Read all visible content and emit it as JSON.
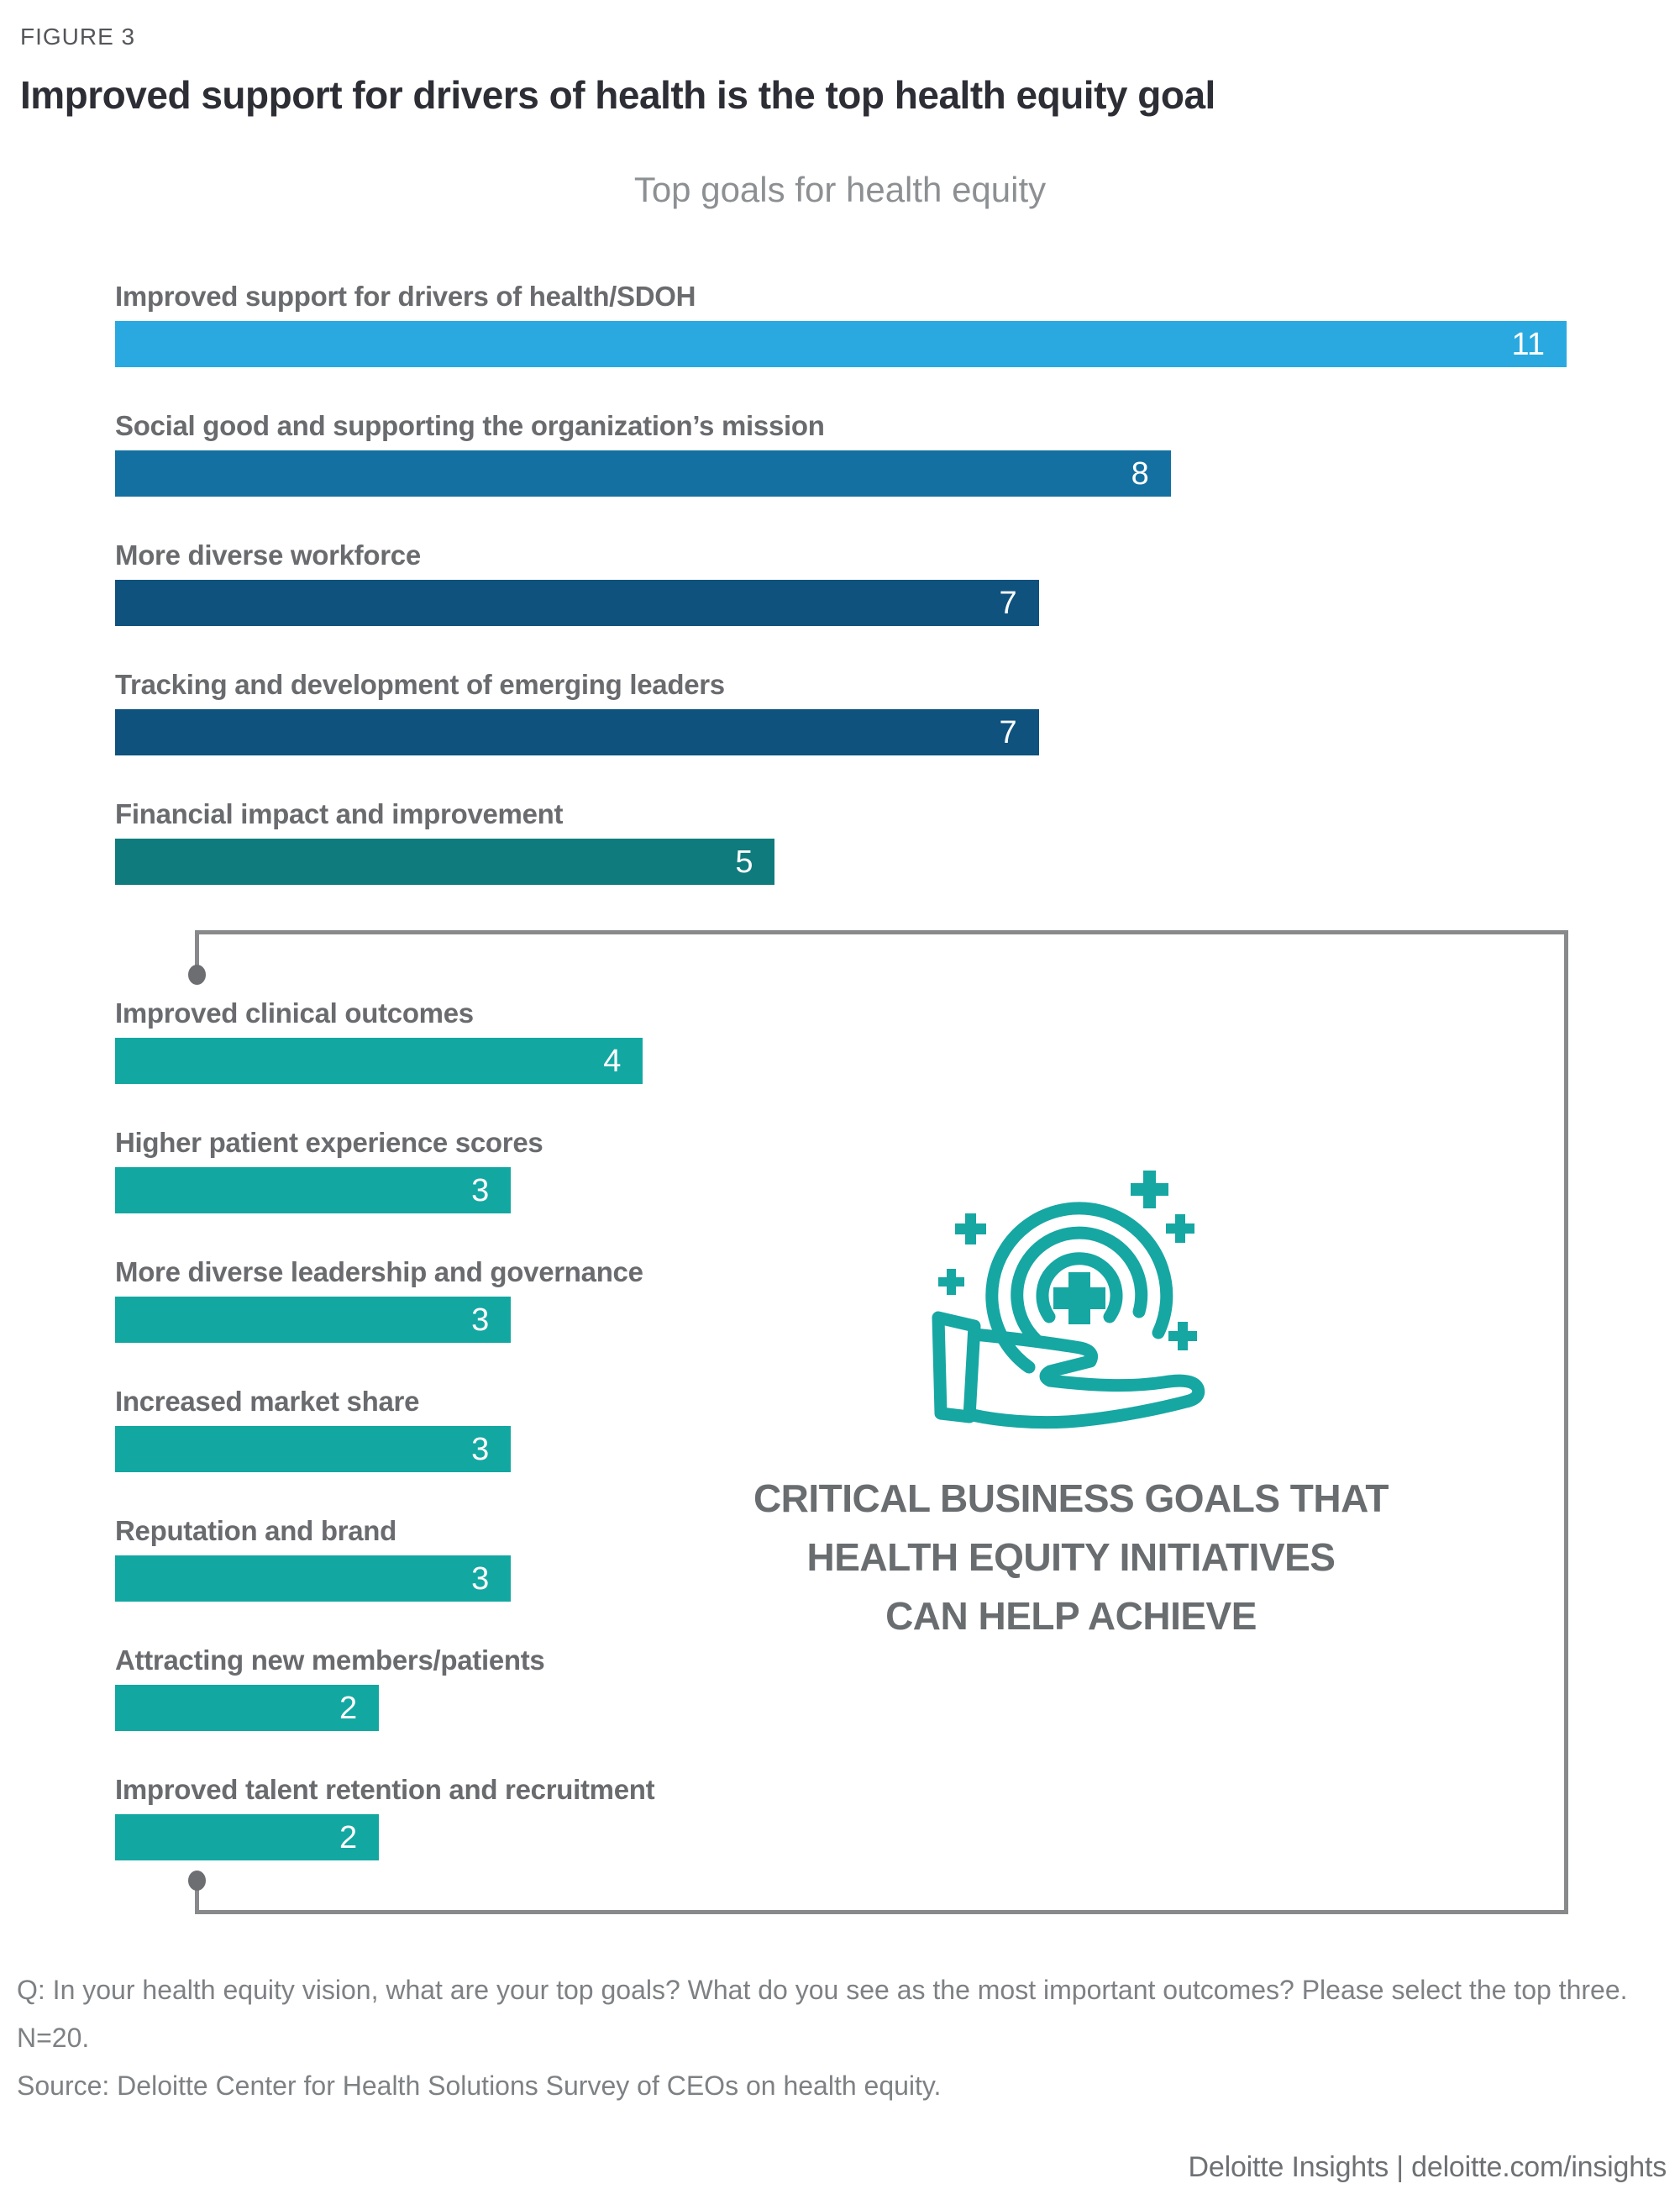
{
  "figure_label": "FIGURE 3",
  "title": "Improved support for drivers of health is the top health equity goal",
  "subtitle": "Top goals for health equity",
  "theme": {
    "accent": "#16A7A3",
    "bracket": "#88898B",
    "dot": "#6D6E71"
  },
  "chart_data": {
    "type": "bar",
    "orientation": "horizontal",
    "title": "Top goals for health equity",
    "xlabel": "",
    "ylabel": "",
    "xlim": [
      0,
      11
    ],
    "grid": false,
    "value_labels": "inside-right",
    "items": [
      {
        "label": "Improved support for drivers of health/SDOH",
        "value": 11,
        "color": "#29A9E0",
        "group": "top"
      },
      {
        "label": "Social good and supporting the organization’s mission",
        "value": 8,
        "color": "#1470A1",
        "group": "top"
      },
      {
        "label": "More diverse workforce",
        "value": 7,
        "color": "#0F527E",
        "group": "top"
      },
      {
        "label": "Tracking and development of emerging leaders",
        "value": 7,
        "color": "#0F527E",
        "group": "top"
      },
      {
        "label": "Financial impact and improvement",
        "value": 5,
        "color": "#0F7B7C",
        "group": "top"
      },
      {
        "label": "Improved clinical outcomes",
        "value": 4,
        "color": "#13A7A2",
        "group": "critical-business-goals"
      },
      {
        "label": "Higher patient experience scores",
        "value": 3,
        "color": "#13A7A2",
        "group": "critical-business-goals"
      },
      {
        "label": "More diverse leadership and governance",
        "value": 3,
        "color": "#13A7A2",
        "group": "critical-business-goals"
      },
      {
        "label": "Increased market share",
        "value": 3,
        "color": "#13A7A2",
        "group": "critical-business-goals"
      },
      {
        "label": "Reputation and brand",
        "value": 3,
        "color": "#13A7A2",
        "group": "critical-business-goals"
      },
      {
        "label": "Attracting new members/patients",
        "value": 2,
        "color": "#13A7A2",
        "group": "critical-business-goals"
      },
      {
        "label": "Improved talent retention and recruitment",
        "value": 2,
        "color": "#13A7A2",
        "group": "critical-business-goals"
      }
    ]
  },
  "callout": {
    "icon": "hand-offering-health-icon",
    "lines": [
      "CRITICAL BUSINESS GOALS THAT",
      "HEALTH EQUITY INITIATIVES",
      "CAN HELP ACHIEVE"
    ]
  },
  "footnote": {
    "question": "Q: In your health equity vision, what are your top goals? What do you see as the most important outcomes? Please select the top three. N=20.",
    "source": "Source: Deloitte Center for Health Solutions Survey of CEOs on health equity."
  },
  "credit": "Deloitte Insights | deloitte.com/insights"
}
